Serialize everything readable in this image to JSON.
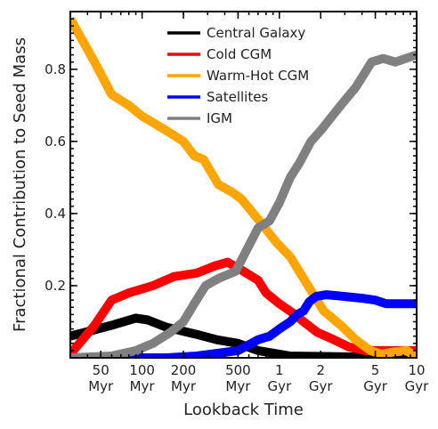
{
  "chart_data": {
    "type": "line",
    "xlabel": "Lookback Time",
    "ylabel": "Fractional Contribution to Seed Mass",
    "x_scale": "log",
    "x_unit": "Myr",
    "xlim": [
      30,
      10000
    ],
    "ylim": [
      0.0,
      0.96
    ],
    "legend_position": "top-right",
    "x_ticks": [
      {
        "value": 50,
        "line1": "50",
        "line2": "Myr"
      },
      {
        "value": 100,
        "line1": "100",
        "line2": "Myr"
      },
      {
        "value": 200,
        "line1": "200",
        "line2": "Myr"
      },
      {
        "value": 500,
        "line1": "500",
        "line2": "Myr"
      },
      {
        "value": 1000,
        "line1": "1",
        "line2": "Gyr"
      },
      {
        "value": 2000,
        "line1": "2",
        "line2": "Gyr"
      },
      {
        "value": 5000,
        "line1": "5",
        "line2": "Gyr"
      },
      {
        "value": 10000,
        "line1": "10",
        "line2": "Gyr"
      }
    ],
    "y_ticks": [
      {
        "value": 0.2,
        "label": "0.2"
      },
      {
        "value": 0.4,
        "label": "0.4"
      },
      {
        "value": 0.6,
        "label": "0.6"
      },
      {
        "value": 0.8,
        "label": "0.8"
      }
    ],
    "series": [
      {
        "name": "Central Galaxy",
        "color": "#000000",
        "points": [
          [
            30,
            0.06
          ],
          [
            60,
            0.09
          ],
          [
            90,
            0.11
          ],
          [
            110,
            0.105
          ],
          [
            150,
            0.085
          ],
          [
            250,
            0.065
          ],
          [
            350,
            0.05
          ],
          [
            500,
            0.04
          ],
          [
            700,
            0.02
          ],
          [
            1000,
            0.01
          ],
          [
            1200,
            0.005
          ],
          [
            10000,
            0.0
          ]
        ]
      },
      {
        "name": "Cold CGM",
        "color": "#ff0000",
        "points": [
          [
            30,
            0.01
          ],
          [
            45,
            0.09
          ],
          [
            60,
            0.16
          ],
          [
            80,
            0.18
          ],
          [
            120,
            0.2
          ],
          [
            170,
            0.225
          ],
          [
            250,
            0.235
          ],
          [
            340,
            0.255
          ],
          [
            420,
            0.265
          ],
          [
            520,
            0.245
          ],
          [
            700,
            0.215
          ],
          [
            800,
            0.18
          ],
          [
            1000,
            0.15
          ],
          [
            1300,
            0.12
          ],
          [
            1500,
            0.1
          ],
          [
            1900,
            0.07
          ],
          [
            2500,
            0.05
          ],
          [
            3200,
            0.03
          ],
          [
            4200,
            0.02
          ],
          [
            10000,
            0.02
          ]
        ]
      },
      {
        "name": "Warm-Hot CGM",
        "color": "#ffa500",
        "points": [
          [
            30,
            0.94
          ],
          [
            45,
            0.82
          ],
          [
            60,
            0.73
          ],
          [
            80,
            0.7
          ],
          [
            100,
            0.67
          ],
          [
            150,
            0.63
          ],
          [
            200,
            0.6
          ],
          [
            240,
            0.56
          ],
          [
            280,
            0.55
          ],
          [
            360,
            0.48
          ],
          [
            450,
            0.46
          ],
          [
            530,
            0.44
          ],
          [
            750,
            0.37
          ],
          [
            950,
            0.32
          ],
          [
            1200,
            0.28
          ],
          [
            1500,
            0.22
          ],
          [
            2100,
            0.13
          ],
          [
            2800,
            0.09
          ],
          [
            3600,
            0.05
          ],
          [
            4600,
            0.02
          ],
          [
            5500,
            0.01
          ],
          [
            6500,
            0.015
          ],
          [
            8500,
            0.02
          ],
          [
            10000,
            0.0
          ]
        ]
      },
      {
        "name": "Satellites",
        "color": "#0000ff",
        "points": [
          [
            30,
            0.0
          ],
          [
            150,
            0.0
          ],
          [
            250,
            0.005
          ],
          [
            500,
            0.02
          ],
          [
            700,
            0.05
          ],
          [
            850,
            0.06
          ],
          [
            1000,
            0.08
          ],
          [
            1200,
            0.1
          ],
          [
            1350,
            0.12
          ],
          [
            1500,
            0.13
          ],
          [
            1650,
            0.155
          ],
          [
            1850,
            0.17
          ],
          [
            2200,
            0.175
          ],
          [
            3000,
            0.17
          ],
          [
            4000,
            0.165
          ],
          [
            5000,
            0.16
          ],
          [
            6000,
            0.15
          ],
          [
            8000,
            0.15
          ],
          [
            10000,
            0.15
          ]
        ]
      },
      {
        "name": "IGM",
        "color": "#808080",
        "points": [
          [
            30,
            0.0
          ],
          [
            60,
            0.005
          ],
          [
            90,
            0.02
          ],
          [
            120,
            0.04
          ],
          [
            160,
            0.07
          ],
          [
            200,
            0.1
          ],
          [
            240,
            0.15
          ],
          [
            290,
            0.2
          ],
          [
            360,
            0.22
          ],
          [
            480,
            0.24
          ],
          [
            580,
            0.3
          ],
          [
            700,
            0.36
          ],
          [
            850,
            0.38
          ],
          [
            1000,
            0.43
          ],
          [
            1200,
            0.5
          ],
          [
            1400,
            0.54
          ],
          [
            1700,
            0.6
          ],
          [
            2000,
            0.63
          ],
          [
            2800,
            0.7
          ],
          [
            3600,
            0.75
          ],
          [
            4700,
            0.82
          ],
          [
            5700,
            0.83
          ],
          [
            7000,
            0.82
          ],
          [
            10000,
            0.84
          ]
        ]
      }
    ]
  }
}
